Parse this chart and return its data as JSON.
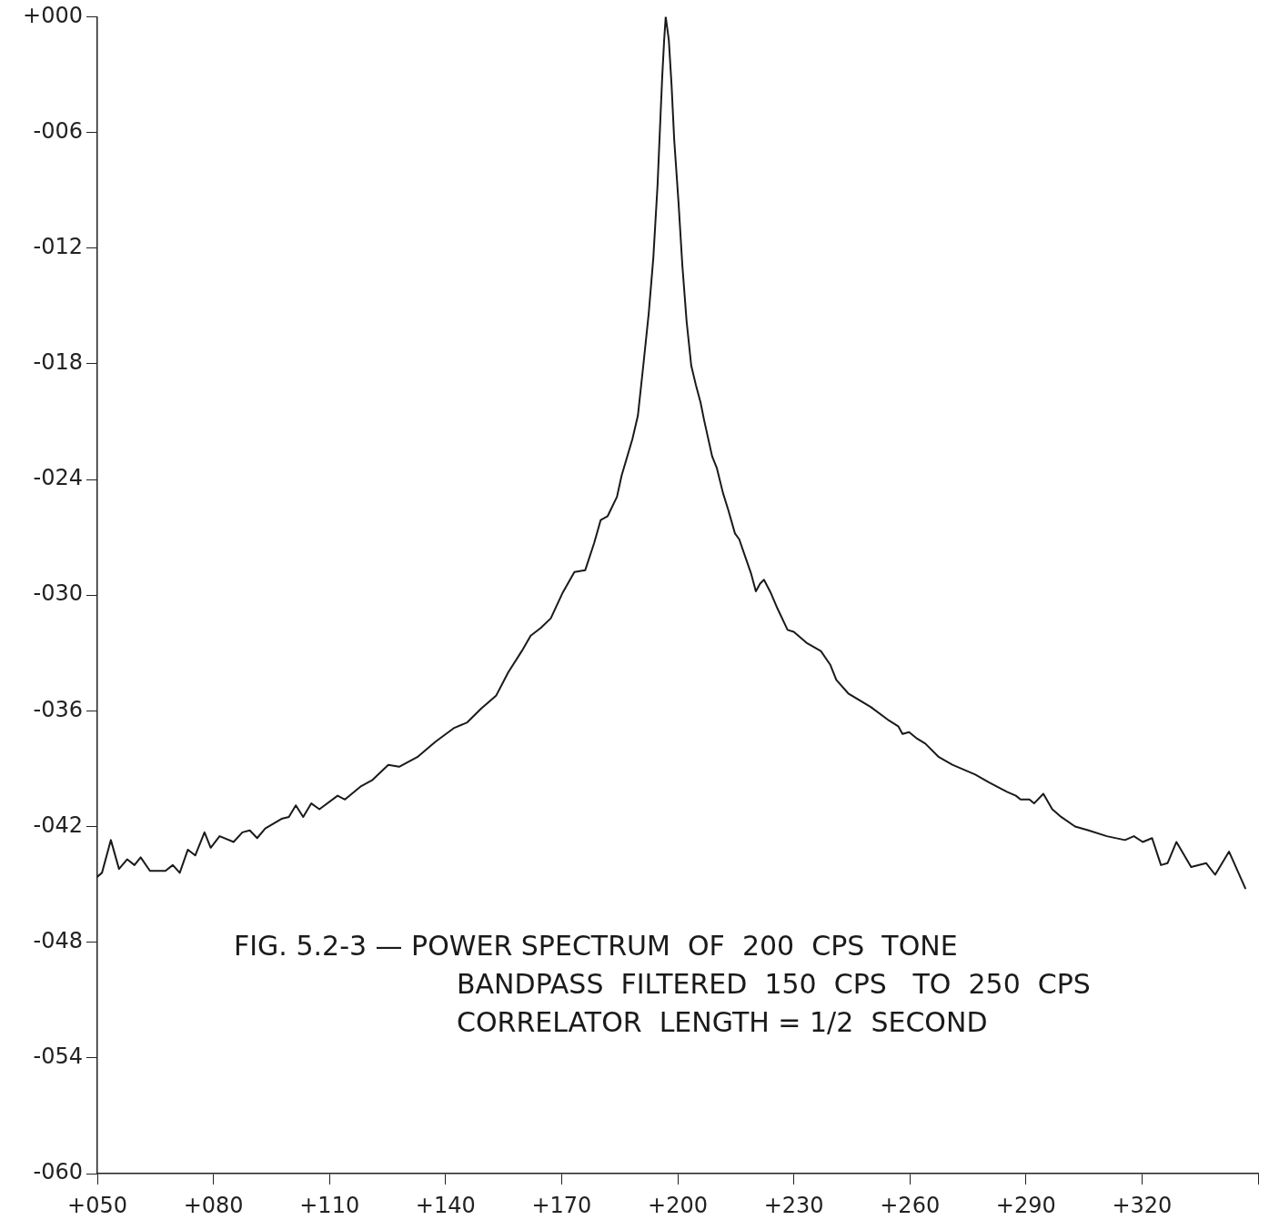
{
  "chart_data": {
    "type": "line",
    "annotations": [
      "FIG. 5.2-3 — POWER SPECTRUM  OF  200  CPS  TONE",
      "BANDPASS  FILTERED  150  CPS   TO  250  CPS",
      "CORRELATOR  LENGTH = 1/2  SECOND"
    ],
    "xlim": [
      50,
      350
    ],
    "xticks": [
      {
        "value": 50,
        "label": "+050"
      },
      {
        "value": 80,
        "label": "+080"
      },
      {
        "value": 110,
        "label": "+110"
      },
      {
        "value": 140,
        "label": "+140"
      },
      {
        "value": 170,
        "label": "+170"
      },
      {
        "value": 200,
        "label": "+200"
      },
      {
        "value": 230,
        "label": "+230"
      },
      {
        "value": 260,
        "label": "+260"
      },
      {
        "value": 290,
        "label": "+290"
      },
      {
        "value": 320,
        "label": "+320"
      },
      {
        "value": 350,
        "label": null
      }
    ],
    "ylim": [
      -60,
      0
    ],
    "yticks": [
      {
        "value": 0,
        "label": "+000"
      },
      {
        "value": -6,
        "label": "-006"
      },
      {
        "value": -12,
        "label": "-012"
      },
      {
        "value": -18,
        "label": "-018"
      },
      {
        "value": -24,
        "label": "-024"
      },
      {
        "value": -30,
        "label": "-030"
      },
      {
        "value": -36,
        "label": "-036"
      },
      {
        "value": -42,
        "label": "-042"
      },
      {
        "value": -48,
        "label": "-048"
      },
      {
        "value": -54,
        "label": "-054"
      },
      {
        "value": -60,
        "label": "-060"
      }
    ],
    "grid": false,
    "legend": false,
    "marker": "none",
    "line_style": "solid",
    "series": [
      {
        "color": "#1a1a1a",
        "x": [
          50.0,
          51.2,
          53.5,
          55.6,
          57.7,
          59.6,
          61.2,
          63.6,
          67.6,
          69.5,
          71.3,
          73.4,
          75.3,
          77.7,
          79.3,
          81.6,
          85.2,
          87.5,
          89.4,
          91.3,
          93.4,
          97.6,
          99.5,
          101.3,
          103.2,
          105.3,
          107.4,
          112.1,
          114.0,
          118.2,
          121.0,
          125.2,
          128.0,
          132.7,
          137.4,
          142.1,
          145.6,
          149.1,
          153.1,
          156.2,
          159.7,
          162.0,
          164.6,
          167.2,
          170.2,
          173.3,
          176.1,
          178.4,
          180.1,
          181.9,
          184.3,
          185.5,
          188.3,
          189.7,
          191.1,
          192.5,
          193.7,
          194.8,
          195.5,
          196.0,
          196.5,
          196.9,
          197.7,
          198.4,
          199.1,
          200.2,
          201.2,
          202.3,
          203.5,
          204.7,
          205.9,
          206.8,
          208.9,
          210.1,
          211.7,
          213.1,
          214.8,
          215.9,
          217.1,
          219.0,
          220.2,
          221.3,
          222.3,
          224.1,
          225.8,
          228.4,
          230.0,
          233.5,
          237.0,
          239.4,
          241.0,
          244.1,
          249.9,
          254.6,
          257.0,
          258.1,
          259.8,
          261.6,
          264.0,
          267.5,
          271.0,
          276.9,
          280.4,
          285.1,
          287.4,
          288.6,
          290.9,
          292.1,
          294.5,
          296.8,
          299.1,
          302.7,
          306.2,
          310.9,
          315.6,
          317.9,
          320.2,
          322.6,
          324.9,
          326.6,
          328.9,
          332.7,
          336.6,
          338.9,
          342.5,
          346.7
        ],
        "values": [
          -44.6,
          -44.4,
          -42.7,
          -44.2,
          -43.7,
          -44.0,
          -43.6,
          -44.3,
          -44.3,
          -44.0,
          -44.4,
          -43.2,
          -43.5,
          -42.3,
          -43.1,
          -42.5,
          -42.8,
          -42.3,
          -42.2,
          -42.6,
          -42.1,
          -41.6,
          -41.5,
          -40.9,
          -41.5,
          -40.8,
          -41.1,
          -40.4,
          -40.6,
          -39.9,
          -39.6,
          -38.8,
          -38.9,
          -38.4,
          -37.6,
          -36.9,
          -36.6,
          -35.9,
          -35.2,
          -34.0,
          -32.9,
          -32.1,
          -31.7,
          -31.2,
          -29.9,
          -28.8,
          -28.7,
          -27.3,
          -26.1,
          -25.9,
          -24.9,
          -23.8,
          -21.9,
          -20.7,
          -18.1,
          -15.4,
          -12.5,
          -8.7,
          -5.4,
          -3.1,
          -1.2,
          0.0,
          -1.2,
          -3.5,
          -6.4,
          -9.6,
          -12.9,
          -15.8,
          -18.1,
          -19.1,
          -20.0,
          -20.9,
          -22.8,
          -23.4,
          -24.7,
          -25.6,
          -26.8,
          -27.1,
          -27.8,
          -28.9,
          -29.8,
          -29.4,
          -29.2,
          -29.9,
          -30.7,
          -31.8,
          -31.9,
          -32.5,
          -32.9,
          -33.6,
          -34.4,
          -35.1,
          -35.8,
          -36.5,
          -36.8,
          -37.2,
          -37.1,
          -37.4,
          -37.7,
          -38.4,
          -38.8,
          -39.3,
          -39.7,
          -40.2,
          -40.4,
          -40.6,
          -40.6,
          -40.8,
          -40.3,
          -41.1,
          -41.5,
          -42.0,
          -42.2,
          -42.5,
          -42.7,
          -42.5,
          -42.8,
          -42.6,
          -44.0,
          -43.9,
          -42.8,
          -44.1,
          -43.9,
          -44.5,
          -43.3,
          -45.2
        ]
      }
    ]
  }
}
